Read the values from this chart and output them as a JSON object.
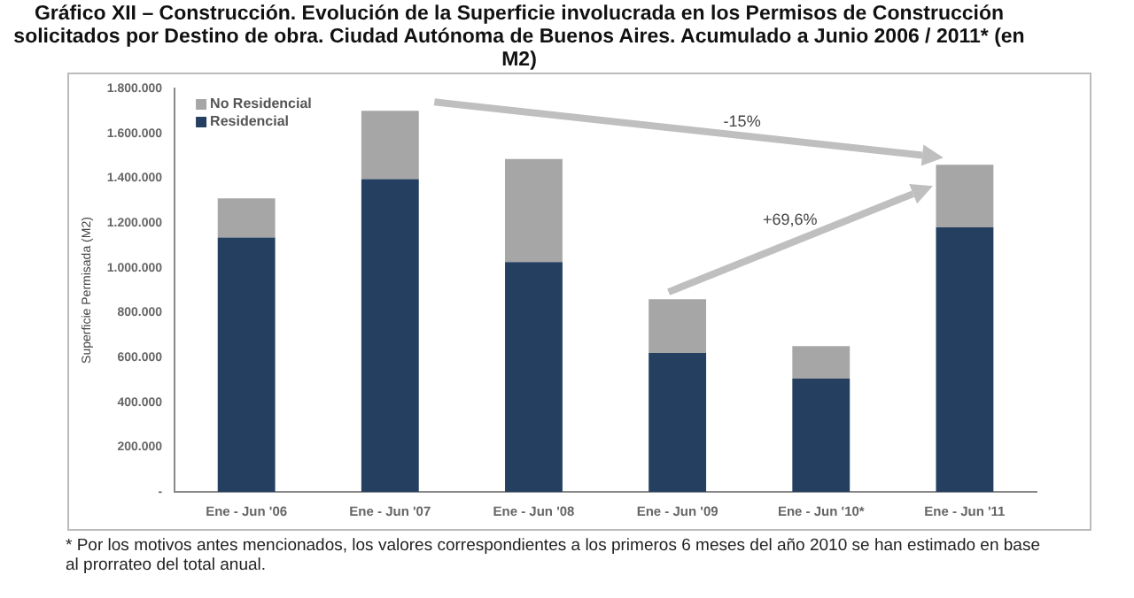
{
  "chart_data": {
    "type": "bar",
    "title": "Gráfico XII – Construcción. Evolución de la Superficie involucrada en los Permisos de Construcción solicitados por Destino de obra. Ciudad Autónoma de Buenos Aires. Acumulado a Junio 2006 / 2011* (en M2)",
    "ylabel": "Superficie Permisada (M2)",
    "categories": [
      "Ene - Jun '06",
      "Ene - Jun '07",
      "Ene - Jun '08",
      "Ene - Jun '09",
      "Ene - Jun '10*",
      "Ene - Jun '11"
    ],
    "series": [
      {
        "name": "Residencial",
        "color": "#243f60",
        "values": [
          1135000,
          1395000,
          1025000,
          620000,
          505000,
          1180000
        ]
      },
      {
        "name": "No Residencial",
        "color": "#a6a6a6",
        "values": [
          175000,
          305000,
          460000,
          240000,
          145000,
          280000
        ]
      }
    ],
    "stacked": true,
    "ylim": [
      0,
      1800000
    ],
    "yticks": [
      {
        "value": 0,
        "label": "-"
      },
      {
        "value": 200000,
        "label": "200.000"
      },
      {
        "value": 400000,
        "label": "400.000"
      },
      {
        "value": 600000,
        "label": "600.000"
      },
      {
        "value": 800000,
        "label": "800.000"
      },
      {
        "value": 1000000,
        "label": "1.000.000"
      },
      {
        "value": 1200000,
        "label": "1.200.000"
      },
      {
        "value": 1400000,
        "label": "1.400.000"
      },
      {
        "value": 1600000,
        "label": "1.600.000"
      },
      {
        "value": 1800000,
        "label": "1.800.000"
      }
    ],
    "grid": false,
    "legend": "top left",
    "annotations": [
      "-15%",
      "+69,6%",
      "* Por los motivos antes mencionados, los valores correspondientes a los primeros 6 meses del año 2010 se han estimado en base al prorrateo del total anual."
    ]
  }
}
